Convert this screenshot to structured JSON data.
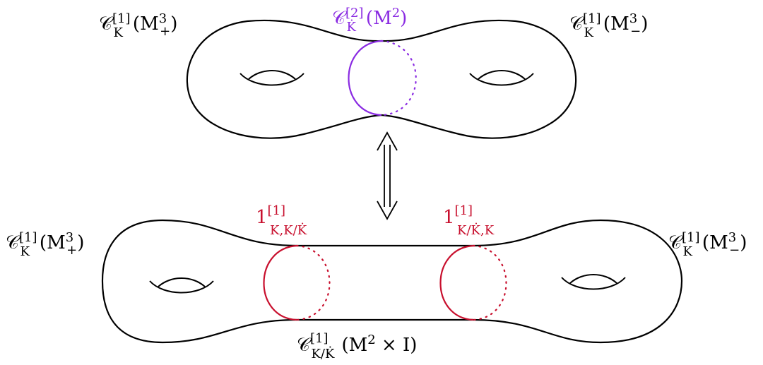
{
  "colors": {
    "black": "#000000",
    "purple": "#8a2be2",
    "red": "#c8102e"
  },
  "top": {
    "left_label": {
      "base": "𝒞",
      "sup": "[1]",
      "sub": "K",
      "arg": "(M",
      "arg_sup": "3",
      "arg_sub": "+",
      "close": ")"
    },
    "right_label": {
      "base": "𝒞",
      "sup": "[1]",
      "sub": "K",
      "arg": "(M",
      "arg_sup": "3",
      "arg_sub": "−",
      "close": ")"
    },
    "middle_label": {
      "base": "𝒞",
      "sup": "[2]",
      "sub": "K̇",
      "arg": "(M",
      "arg_sup": "2",
      "close": ")"
    }
  },
  "arrow": {
    "symbol": "⇕"
  },
  "bottom": {
    "left_label": {
      "base": "𝒞",
      "sup": "[1]",
      "sub": "K",
      "arg": "(M",
      "arg_sup": "3",
      "arg_sub": "+",
      "close": ")"
    },
    "right_label": {
      "base": "𝒞",
      "sup": "[1]",
      "sub": "K",
      "arg": "(M",
      "arg_sup": "3",
      "arg_sub": "−",
      "close": ")"
    },
    "left_red_label": {
      "base": "1",
      "sup": "[1]",
      "sub": "K,K/K̇"
    },
    "right_red_label": {
      "base": "1",
      "sup": "[1]",
      "sub": "K/K̇,K"
    },
    "bottom_label": {
      "base": "𝒞",
      "sup": "[1]",
      "sub": "K/K̇",
      "arg": "(M",
      "arg_sup": "2",
      "arg_mid": " × I",
      "close": ")"
    }
  }
}
